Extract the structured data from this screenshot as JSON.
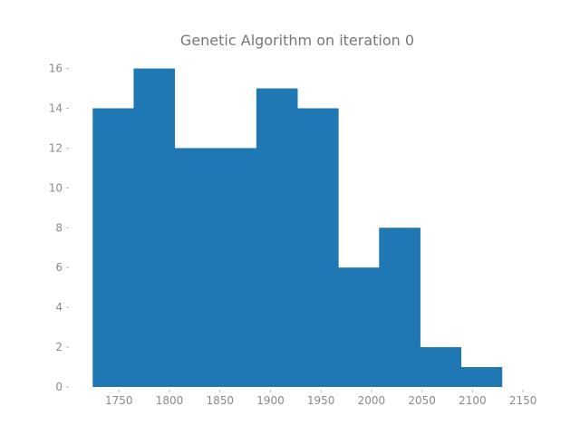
{
  "chart_data": {
    "type": "bar",
    "title": "Genetic Algorithm on iteration 0",
    "xlabel": "",
    "ylabel": "",
    "bin_edges": [
      1724,
      1764.5,
      1805,
      1845.5,
      1886,
      1926.5,
      1967,
      2007.5,
      2048,
      2088.5,
      2129
    ],
    "values": [
      14,
      16,
      12,
      12,
      15,
      14,
      6,
      8,
      2,
      1
    ],
    "xticks": [
      1750,
      1800,
      1850,
      1900,
      1950,
      2000,
      2050,
      2100,
      2150
    ],
    "xtick_labels": [
      "1750",
      "1800",
      "1850",
      "1900",
      "1950",
      "2000",
      "2050",
      "2100",
      "2150"
    ],
    "yticks": [
      0,
      2,
      4,
      6,
      8,
      10,
      12,
      14,
      16
    ],
    "ytick_labels": [
      "0",
      "2",
      "4",
      "6",
      "8",
      "10",
      "12",
      "14",
      "16"
    ],
    "xlim": [
      1704,
      2149
    ],
    "ylim": [
      0,
      16.8
    ],
    "grid": false,
    "bar_color": "#1f77b4",
    "text_color": "#8a8a8a"
  }
}
